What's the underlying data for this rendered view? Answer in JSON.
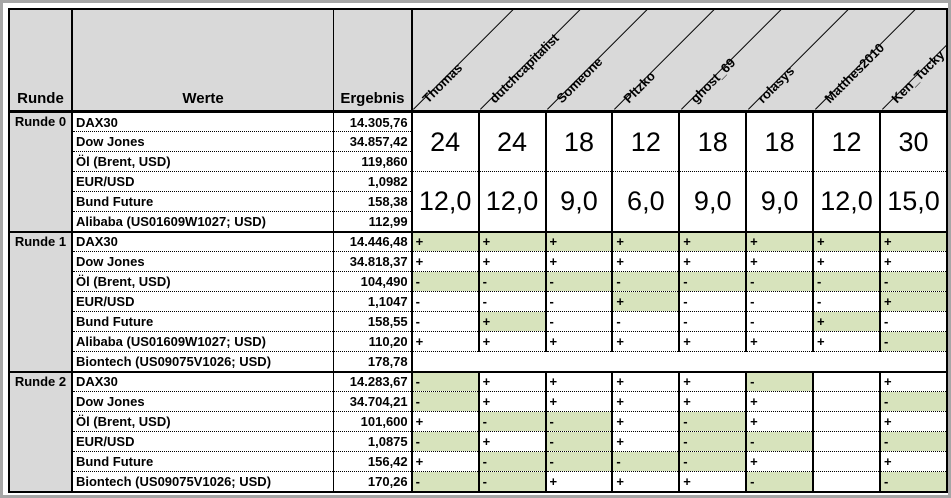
{
  "colors": {
    "highlight_green": "#d7e3bc",
    "header_gray": "#d9d9d9",
    "frame_gray": "#a6a6a6",
    "grid_black": "#000000"
  },
  "header": {
    "runde": "Runde",
    "werte": "Werte",
    "ergebnis": "Ergebnis"
  },
  "players": [
    "Thomas",
    "dutchcapitalist",
    "Someone",
    "Pltzko",
    "ghost_69",
    "rolasys",
    "Matthes2010",
    "Ken_Tucky"
  ],
  "rounds": [
    {
      "label": "Runde 0",
      "rows": [
        {
          "name": "DAX30",
          "result": "14.305,76"
        },
        {
          "name": "Dow Jones",
          "result": "34.857,42"
        },
        {
          "name": "Öl (Brent, USD)",
          "result": "119,860"
        },
        {
          "name": "EUR/USD",
          "result": "1,0982"
        },
        {
          "name": "Bund Future",
          "result": "158,38"
        },
        {
          "name": "Alibaba (US01609W1027; USD)",
          "result": "112,99"
        }
      ],
      "bets_top": [
        "24",
        "24",
        "18",
        "12",
        "18",
        "18",
        "12",
        "30"
      ],
      "bets_bottom": [
        "12,0",
        "12,0",
        "9,0",
        "6,0",
        "9,0",
        "9,0",
        "12,0",
        "15,0"
      ]
    },
    {
      "label": "Runde 1",
      "rows": [
        {
          "name": "DAX30",
          "result": "14.446,48",
          "picks": [
            {
              "sign": "+",
              "hl": true
            },
            {
              "sign": "+",
              "hl": true
            },
            {
              "sign": "+",
              "hl": true
            },
            {
              "sign": "+",
              "hl": true
            },
            {
              "sign": "+",
              "hl": true
            },
            {
              "sign": "+",
              "hl": true
            },
            {
              "sign": "+",
              "hl": true
            },
            {
              "sign": "+",
              "hl": true
            }
          ]
        },
        {
          "name": "Dow Jones",
          "result": "34.818,37",
          "picks": [
            {
              "sign": "+",
              "hl": false
            },
            {
              "sign": "+",
              "hl": false
            },
            {
              "sign": "+",
              "hl": false
            },
            {
              "sign": "+",
              "hl": false
            },
            {
              "sign": "+",
              "hl": false
            },
            {
              "sign": "+",
              "hl": false
            },
            {
              "sign": "+",
              "hl": false
            },
            {
              "sign": "+",
              "hl": false
            }
          ]
        },
        {
          "name": "Öl (Brent, USD)",
          "result": "104,490",
          "picks": [
            {
              "sign": "-",
              "hl": true
            },
            {
              "sign": "-",
              "hl": true
            },
            {
              "sign": "-",
              "hl": true
            },
            {
              "sign": "-",
              "hl": true
            },
            {
              "sign": "-",
              "hl": true
            },
            {
              "sign": "-",
              "hl": true
            },
            {
              "sign": "-",
              "hl": true
            },
            {
              "sign": "-",
              "hl": true
            }
          ]
        },
        {
          "name": "EUR/USD",
          "result": "1,1047",
          "picks": [
            {
              "sign": "-",
              "hl": false
            },
            {
              "sign": "-",
              "hl": false
            },
            {
              "sign": "-",
              "hl": false
            },
            {
              "sign": "+",
              "hl": true
            },
            {
              "sign": "-",
              "hl": false
            },
            {
              "sign": "-",
              "hl": false
            },
            {
              "sign": "-",
              "hl": false
            },
            {
              "sign": "+",
              "hl": true
            }
          ]
        },
        {
          "name": "Bund Future",
          "result": "158,55",
          "picks": [
            {
              "sign": "-",
              "hl": false
            },
            {
              "sign": "+",
              "hl": true
            },
            {
              "sign": "-",
              "hl": false
            },
            {
              "sign": "-",
              "hl": false
            },
            {
              "sign": "-",
              "hl": false
            },
            {
              "sign": "-",
              "hl": false
            },
            {
              "sign": "+",
              "hl": true
            },
            {
              "sign": "-",
              "hl": false
            }
          ]
        },
        {
          "name": "Alibaba (US01609W1027; USD)",
          "result": "110,20",
          "picks": [
            {
              "sign": "+",
              "hl": false
            },
            {
              "sign": "+",
              "hl": false
            },
            {
              "sign": "+",
              "hl": false
            },
            {
              "sign": "+",
              "hl": false
            },
            {
              "sign": "+",
              "hl": false
            },
            {
              "sign": "+",
              "hl": false
            },
            {
              "sign": "+",
              "hl": false
            },
            {
              "sign": "-",
              "hl": true
            }
          ]
        },
        {
          "name": "Biontech (US09075V1026; USD)",
          "result": "178,78",
          "plain": true,
          "picks": [
            {
              "sign": "",
              "hl": false
            },
            {
              "sign": "",
              "hl": false
            },
            {
              "sign": "",
              "hl": false
            },
            {
              "sign": "",
              "hl": false
            },
            {
              "sign": "",
              "hl": false
            },
            {
              "sign": "",
              "hl": false
            },
            {
              "sign": "",
              "hl": false
            },
            {
              "sign": "",
              "hl": false
            }
          ]
        }
      ]
    },
    {
      "label": "Runde 2",
      "rows": [
        {
          "name": "DAX30",
          "result": "14.283,67",
          "picks": [
            {
              "sign": "-",
              "hl": true
            },
            {
              "sign": "+",
              "hl": false
            },
            {
              "sign": "+",
              "hl": false
            },
            {
              "sign": "+",
              "hl": false
            },
            {
              "sign": "+",
              "hl": false
            },
            {
              "sign": "-",
              "hl": true
            },
            {
              "sign": "",
              "hl": false
            },
            {
              "sign": "+",
              "hl": false
            }
          ]
        },
        {
          "name": "Dow Jones",
          "result": "34.704,21",
          "picks": [
            {
              "sign": "-",
              "hl": true
            },
            {
              "sign": "+",
              "hl": false
            },
            {
              "sign": "+",
              "hl": false
            },
            {
              "sign": "+",
              "hl": false
            },
            {
              "sign": "+",
              "hl": false
            },
            {
              "sign": "+",
              "hl": false
            },
            {
              "sign": "",
              "hl": false
            },
            {
              "sign": "-",
              "hl": true
            }
          ]
        },
        {
          "name": "Öl (Brent, USD)",
          "result": "101,600",
          "picks": [
            {
              "sign": "+",
              "hl": false
            },
            {
              "sign": "-",
              "hl": true
            },
            {
              "sign": "-",
              "hl": true
            },
            {
              "sign": "+",
              "hl": false
            },
            {
              "sign": "-",
              "hl": true
            },
            {
              "sign": "+",
              "hl": false
            },
            {
              "sign": "",
              "hl": false
            },
            {
              "sign": "+",
              "hl": false
            }
          ]
        },
        {
          "name": "EUR/USD",
          "result": "1,0875",
          "picks": [
            {
              "sign": "-",
              "hl": true
            },
            {
              "sign": "+",
              "hl": false
            },
            {
              "sign": "-",
              "hl": true
            },
            {
              "sign": "+",
              "hl": false
            },
            {
              "sign": "-",
              "hl": true
            },
            {
              "sign": "-",
              "hl": true
            },
            {
              "sign": "",
              "hl": false
            },
            {
              "sign": "-",
              "hl": true
            }
          ]
        },
        {
          "name": "Bund Future",
          "result": "156,42",
          "picks": [
            {
              "sign": "+",
              "hl": false
            },
            {
              "sign": "-",
              "hl": true
            },
            {
              "sign": "-",
              "hl": true
            },
            {
              "sign": "-",
              "hl": true
            },
            {
              "sign": "-",
              "hl": true
            },
            {
              "sign": "+",
              "hl": false
            },
            {
              "sign": "",
              "hl": false
            },
            {
              "sign": "+",
              "hl": false
            }
          ]
        },
        {
          "name": "Biontech (US09075V1026; USD)",
          "result": "170,26",
          "picks": [
            {
              "sign": "-",
              "hl": true
            },
            {
              "sign": "-",
              "hl": true
            },
            {
              "sign": "+",
              "hl": false
            },
            {
              "sign": "+",
              "hl": false
            },
            {
              "sign": "+",
              "hl": false
            },
            {
              "sign": "-",
              "hl": true
            },
            {
              "sign": "",
              "hl": false
            },
            {
              "sign": "-",
              "hl": true
            }
          ]
        }
      ]
    }
  ]
}
